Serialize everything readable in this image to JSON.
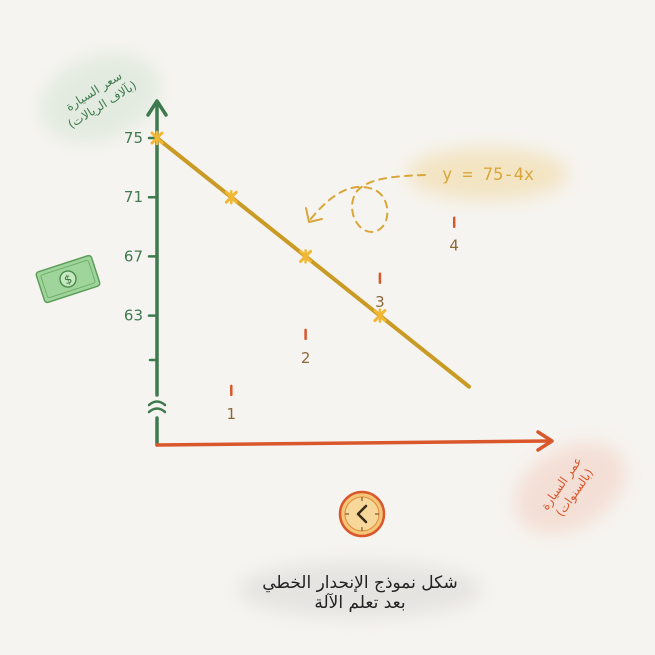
{
  "chart_data": {
    "type": "line",
    "title": "شكل نموذج الإنحدار الخطي\nبعد تعلم الآلة",
    "caption_lines": [
      "شكل نموذج الإنحدار الخطي",
      "بعد تعلم الآلة"
    ],
    "xlabel_lines": [
      "عمر السيارة",
      "(بالسنوات)"
    ],
    "ylabel_lines": [
      "سعر السيارة",
      "(بآلاف الريالات)"
    ],
    "equation": "y = 75-4x",
    "x_ticks": [
      1,
      2,
      3,
      4
    ],
    "y_ticks": [
      63,
      67,
      71,
      75
    ],
    "xlim": [
      0,
      4.3
    ],
    "ylim": [
      55,
      75
    ],
    "y_axis_break": true,
    "grid": false,
    "series": [
      {
        "x": [
          0,
          1,
          2,
          3
        ],
        "y": [
          75,
          71,
          67,
          63
        ],
        "line_to_x": 4.2
      }
    ],
    "colors": {
      "line": "#c99a24",
      "points": "#f2b733",
      "y_axis": "#3f7a4f",
      "x_axis": "#d9572b",
      "equation": "#d9a63a"
    }
  },
  "icons": {
    "money": "dollar-bill-icon",
    "clock": "clock-icon"
  }
}
